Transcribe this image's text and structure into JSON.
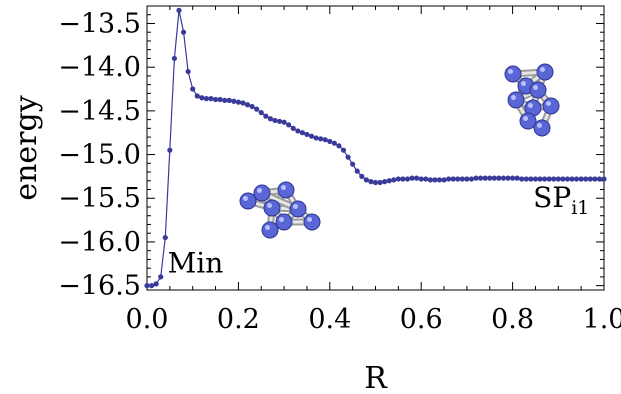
{
  "chart_data": {
    "type": "line",
    "xlabel": "R",
    "ylabel": "energy",
    "xlim": [
      0.0,
      1.0
    ],
    "ylim": [
      -16.55,
      -13.3
    ],
    "x_ticks": [
      0.0,
      0.2,
      0.4,
      0.6,
      0.8,
      1.0
    ],
    "x_tick_labels": [
      "0.0",
      "0.2",
      "0.4",
      "0.6",
      "0.8",
      "1.0"
    ],
    "y_ticks": [
      -13.5,
      -14.0,
      -14.5,
      -15.0,
      -15.5,
      -16.0,
      -16.5
    ],
    "y_tick_labels": [
      "−13.5",
      "−14.0",
      "−14.5",
      "−15.0",
      "−15.5",
      "−16.0",
      "−16.5"
    ],
    "grid": false,
    "series": [
      {
        "color": "#3a3a9a",
        "x": [
          0.0,
          0.01,
          0.02,
          0.03,
          0.04,
          0.05,
          0.06,
          0.07,
          0.08,
          0.09,
          0.1,
          0.11,
          0.12,
          0.13,
          0.14,
          0.15,
          0.16,
          0.17,
          0.18,
          0.19,
          0.2,
          0.21,
          0.22,
          0.23,
          0.24,
          0.25,
          0.26,
          0.27,
          0.28,
          0.29,
          0.3,
          0.31,
          0.32,
          0.33,
          0.34,
          0.35,
          0.36,
          0.37,
          0.38,
          0.39,
          0.4,
          0.41,
          0.42,
          0.43,
          0.44,
          0.45,
          0.46,
          0.47,
          0.48,
          0.49,
          0.5,
          0.51,
          0.52,
          0.53,
          0.54,
          0.55,
          0.56,
          0.57,
          0.58,
          0.59,
          0.6,
          0.61,
          0.62,
          0.63,
          0.64,
          0.65,
          0.66,
          0.67,
          0.68,
          0.69,
          0.7,
          0.71,
          0.72,
          0.73,
          0.74,
          0.75,
          0.76,
          0.77,
          0.78,
          0.79,
          0.8,
          0.81,
          0.82,
          0.83,
          0.84,
          0.85,
          0.86,
          0.87,
          0.88,
          0.89,
          0.9,
          0.91,
          0.92,
          0.93,
          0.94,
          0.95,
          0.96,
          0.97,
          0.98,
          0.99,
          1.0
        ],
        "y": [
          -16.5,
          -16.5,
          -16.48,
          -16.4,
          -15.95,
          -14.95,
          -13.9,
          -13.35,
          -13.6,
          -14.05,
          -14.25,
          -14.33,
          -14.35,
          -14.36,
          -14.36,
          -14.37,
          -14.37,
          -14.38,
          -14.38,
          -14.39,
          -14.4,
          -14.41,
          -14.43,
          -14.45,
          -14.48,
          -14.52,
          -14.56,
          -14.59,
          -14.61,
          -14.62,
          -14.63,
          -14.66,
          -14.7,
          -14.73,
          -14.75,
          -14.77,
          -14.79,
          -14.81,
          -14.82,
          -14.83,
          -14.85,
          -14.87,
          -14.9,
          -14.95,
          -15.03,
          -15.11,
          -15.19,
          -15.25,
          -15.29,
          -15.31,
          -15.32,
          -15.32,
          -15.31,
          -15.3,
          -15.29,
          -15.28,
          -15.28,
          -15.28,
          -15.27,
          -15.27,
          -15.28,
          -15.28,
          -15.29,
          -15.29,
          -15.29,
          -15.29,
          -15.28,
          -15.28,
          -15.28,
          -15.28,
          -15.28,
          -15.28,
          -15.27,
          -15.27,
          -15.27,
          -15.27,
          -15.27,
          -15.27,
          -15.27,
          -15.27,
          -15.27,
          -15.27,
          -15.28,
          -15.28,
          -15.28,
          -15.28,
          -15.28,
          -15.28,
          -15.28,
          -15.28,
          -15.28,
          -15.28,
          -15.28,
          -15.28,
          -15.28,
          -15.28,
          -15.28,
          -15.28,
          -15.28,
          -15.28,
          -15.28
        ]
      }
    ],
    "annotations": [
      {
        "text": "Min",
        "x": 0.045,
        "y": -16.35
      },
      {
        "text": "SP",
        "subscript": "i1",
        "x": 0.845,
        "y": -15.6
      }
    ]
  }
}
